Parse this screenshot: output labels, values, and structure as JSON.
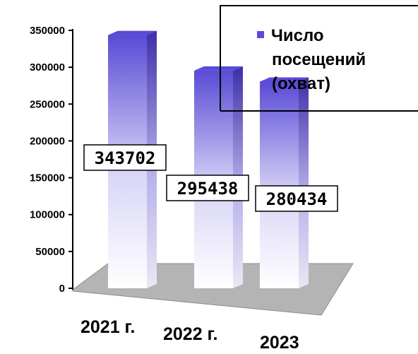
{
  "chart_data": {
    "type": "bar",
    "categories": [
      "2021 г.",
      "2022 г.",
      "2023"
    ],
    "series": [
      {
        "name": "Число посещений (охват)",
        "values": [
          343702,
          295438,
          280434
        ]
      }
    ],
    "data_labels": [
      "343702",
      "295438",
      "280434"
    ],
    "yticks": [
      "0",
      "50000",
      "100000",
      "150000",
      "200000",
      "250000",
      "300000",
      "350000"
    ],
    "ylim": [
      0,
      350000
    ],
    "legend": {
      "lines": [
        "Число",
        "посещений",
        "(охват)"
      ],
      "position": "top-right"
    },
    "grid": false,
    "style": "3d-columns",
    "colors": {
      "bar_top": "#5a4bd6",
      "bar_bottom": "#ffffff",
      "floor": "#b4b4b4",
      "axis": "#000000"
    }
  }
}
